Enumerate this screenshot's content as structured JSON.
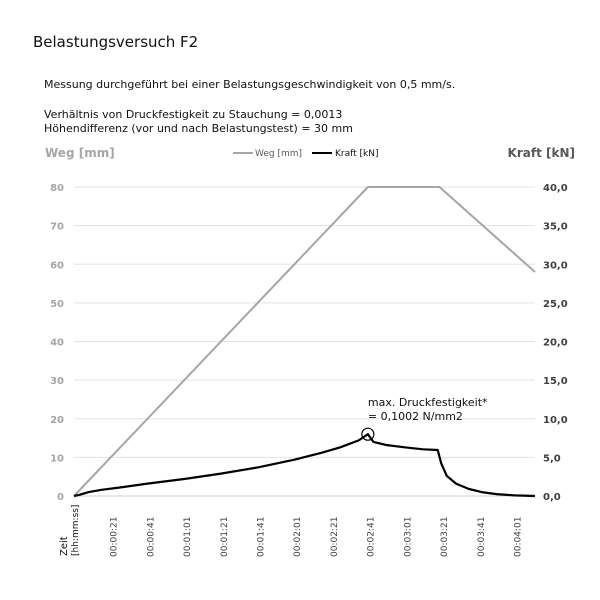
{
  "page": {
    "title": "Belastungsversuch F2",
    "info_lines": [
      "Messung durchgeführt bei einer Belastungsgeschwindigkeit von 0,5 mm/s.",
      "Verhältnis von Druckfestigkeit zu Stauchung = 0,0013",
      "Höhendifferenz (vor und nach Belastungstest) = 30 mm"
    ]
  },
  "chart_data": {
    "type": "line",
    "ylabel_left": "Weg [mm]",
    "ylabel_right": "Kraft [kN]",
    "xlabel_lines": [
      "Zeit",
      "[hh:mm:ss]"
    ],
    "x_unit": "seconds",
    "xlim": [
      0,
      251
    ],
    "ylim_left": [
      0,
      80
    ],
    "ylim_right": [
      0,
      40
    ],
    "left_ticks": [
      "0",
      "10",
      "20",
      "30",
      "40",
      "50",
      "60",
      "70",
      "80"
    ],
    "right_ticks": [
      "0,0",
      "5,0",
      "10,0",
      "15,0",
      "20,0",
      "25,0",
      "30,0",
      "35,0",
      "40,0"
    ],
    "x_ticks": [
      "00:00:21",
      "00:00:41",
      "00:01:01",
      "00:01:21",
      "00:01:41",
      "00:02:01",
      "00:02:21",
      "00:02:41",
      "00:03:01",
      "00:03:21",
      "00:03:41",
      "00:04:01"
    ],
    "x_tick_values": [
      21,
      41,
      61,
      81,
      101,
      121,
      141,
      161,
      181,
      201,
      221,
      241
    ],
    "grid": true,
    "legend_position": "top-center",
    "series": [
      {
        "name": "Weg [mm]",
        "axis": "left",
        "color": "#a6a6a6",
        "x": [
          0,
          160,
          199,
          251
        ],
        "y": [
          0,
          80,
          80,
          58
        ]
      },
      {
        "name": "Kraft [kN]",
        "axis": "right",
        "color": "#000000",
        "x": [
          0,
          3,
          8,
          15,
          25,
          40,
          60,
          80,
          100,
          120,
          135,
          145,
          155,
          160,
          163,
          170,
          180,
          190,
          198,
          200,
          203,
          208,
          215,
          222,
          230,
          240,
          251
        ],
        "y": [
          0,
          0.15,
          0.5,
          0.8,
          1.1,
          1.6,
          2.2,
          2.9,
          3.7,
          4.7,
          5.6,
          6.3,
          7.2,
          8.0,
          7.0,
          6.6,
          6.3,
          6.05,
          5.95,
          4.2,
          2.6,
          1.6,
          0.9,
          0.5,
          0.25,
          0.08,
          0.0
        ]
      }
    ],
    "annotation": {
      "lines": [
        "max. Druckfestigkeit*",
        "= 0,1002 N/mm2"
      ],
      "x": 160,
      "y": 8.0,
      "axis": "right"
    }
  }
}
